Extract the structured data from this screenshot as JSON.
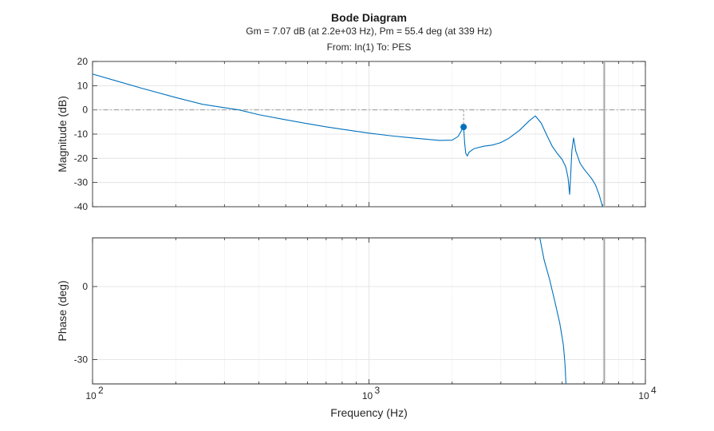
{
  "chart_data": {
    "type": "line",
    "title": "Bode Diagram",
    "subtitle": "Gm = 7.07 dB (at 2.2e+03 Hz),  Pm = 55.4 deg (at 339 Hz)",
    "io_label": "From: In(1)  To: PES",
    "xlabel": "Frequency (Hz)",
    "xscale": "log",
    "xlim": [
      100,
      10000
    ],
    "x_tick_labels": [
      {
        "value": 100,
        "base": "10",
        "exp": "2"
      },
      {
        "value": 1000,
        "base": "10",
        "exp": "3"
      },
      {
        "value": 10000,
        "base": "10",
        "exp": "4"
      }
    ],
    "grid": true,
    "colors": {
      "line": "#0072bd",
      "marker": "#0072bd",
      "crossover": "#a6a6a6",
      "reference": "#8c8c8c"
    },
    "crossover_frequency": 7100,
    "magnitude": {
      "ylabel": "Magnitude (dB)",
      "ylim": [
        -40,
        20
      ],
      "y_ticks": [
        20,
        10,
        0,
        -10,
        -20,
        -30,
        -40
      ],
      "reference_line": 0,
      "gain_margin_marker": {
        "x": 2200,
        "y": -7.07
      },
      "series": [
        {
          "x": [
            100,
            120,
            150,
            200,
            250,
            300,
            339,
            400,
            500,
            600,
            700,
            800,
            1000,
            1200,
            1500,
            1800,
            2000,
            2100,
            2150,
            2180,
            2200,
            2220,
            2240,
            2270,
            2300,
            2400,
            2600,
            2800,
            3000,
            3200,
            3500,
            3800,
            4000,
            4200,
            4400,
            4600,
            4800,
            5000,
            5150,
            5250,
            5320,
            5350,
            5420,
            5500,
            5600,
            5800,
            6000,
            6200,
            6400,
            6600,
            6800,
            7000,
            7100
          ],
          "y": [
            14.8,
            12.2,
            9.0,
            5.1,
            2.3,
            0.9,
            0.0,
            -2.0,
            -4.1,
            -5.7,
            -7.0,
            -8.0,
            -9.6,
            -10.7,
            -11.8,
            -12.6,
            -12.5,
            -11.0,
            -9.0,
            -7.5,
            -7.07,
            -14.0,
            -18.0,
            -19.0,
            -17.5,
            -16.0,
            -15.0,
            -14.5,
            -13.5,
            -11.8,
            -8.5,
            -4.5,
            -2.5,
            -5.5,
            -10.5,
            -15.0,
            -18.0,
            -20.5,
            -23.5,
            -28.0,
            -35.0,
            -30.0,
            -17.0,
            -11.5,
            -17.0,
            -22.0,
            -24.5,
            -26.5,
            -28.5,
            -31.0,
            -35.0,
            -40.0,
            -41.0
          ]
        }
      ]
    },
    "phase": {
      "ylabel": "Phase (deg)",
      "ylim": [
        -40,
        20
      ],
      "y_ticks": [
        0,
        -30
      ],
      "series": [
        {
          "x": [
            4150,
            4300,
            4500,
            4700,
            4900,
            5050,
            5120,
            5160
          ],
          "y": [
            20,
            11.0,
            3.0,
            -6.0,
            -15.0,
            -24.0,
            -32.0,
            -40.0
          ]
        }
      ]
    }
  }
}
